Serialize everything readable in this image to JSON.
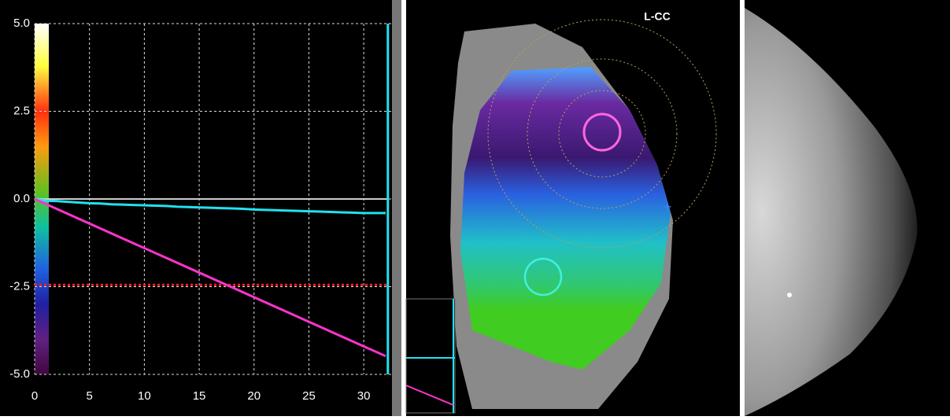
{
  "chart_data": {
    "type": "line",
    "x": [
      0,
      1,
      2,
      3,
      4,
      5,
      6,
      7,
      8,
      9,
      10,
      11,
      12,
      13,
      14,
      15,
      16,
      17,
      18,
      19,
      20,
      21,
      22,
      23,
      24,
      25,
      26,
      27,
      28,
      29,
      30,
      31,
      32
    ],
    "series": [
      {
        "color": "#22e0f0",
        "values": [
          0,
          -0.05,
          -0.06,
          -0.08,
          -0.1,
          -0.12,
          -0.13,
          -0.15,
          -0.16,
          -0.17,
          -0.18,
          -0.19,
          -0.2,
          -0.22,
          -0.23,
          -0.24,
          -0.25,
          -0.26,
          -0.27,
          -0.28,
          -0.3,
          -0.31,
          -0.32,
          -0.33,
          -0.34,
          -0.35,
          -0.36,
          -0.37,
          -0.38,
          -0.39,
          -0.4,
          -0.4,
          -0.4
        ]
      },
      {
        "color": "#ff33cc",
        "values": [
          0,
          -0.14,
          -0.28,
          -0.42,
          -0.56,
          -0.7,
          -0.84,
          -0.98,
          -1.12,
          -1.26,
          -1.4,
          -1.54,
          -1.68,
          -1.82,
          -1.96,
          -2.1,
          -2.24,
          -2.38,
          -2.52,
          -2.66,
          -2.8,
          -2.94,
          -3.08,
          -3.22,
          -3.36,
          -3.5,
          -3.64,
          -3.78,
          -3.92,
          -4.06,
          -4.2,
          -4.34,
          -4.48
        ]
      }
    ],
    "reference_line": 0,
    "reference_color": "#cccccc",
    "threshold": -2.45,
    "threshold_color": "#ff2020",
    "cursor_x": 32.2,
    "cursor_color": "#22e0f0",
    "xlim": [
      0,
      32.5
    ],
    "xticks": [
      0,
      5,
      10,
      15,
      20,
      25,
      30
    ],
    "ylim": [
      -5,
      5
    ],
    "yticks": [
      {
        "value": 5,
        "label": "5.0"
      },
      {
        "value": 2.5,
        "label": "2.5"
      },
      {
        "value": 0,
        "label": "0.0"
      },
      {
        "value": -2.5,
        "label": "-2.5"
      },
      {
        "value": -5,
        "label": "-5.0"
      }
    ],
    "grid": true
  },
  "image_labels": {
    "view": "L-CC"
  }
}
